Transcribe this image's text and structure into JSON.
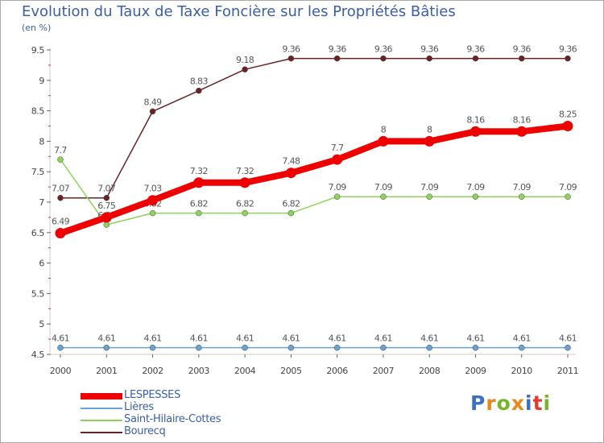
{
  "title": "Evolution du Taux de Taxe Foncière sur les Propriétés Bâties",
  "unit": "(en %)",
  "logo": {
    "letters": [
      "P",
      "r",
      "o",
      "x",
      "i",
      "t",
      "i"
    ],
    "colors": [
      "#3d6fc4",
      "#e8891c",
      "#7ab42d",
      "#e8891c",
      "#3d6fc4",
      "#e03c31",
      "#7ab42d"
    ]
  },
  "chart_data": {
    "type": "line",
    "title": "Evolution du Taux de Taxe Foncière sur les Propriétés Bâties",
    "ylabel": "(en %)",
    "xlabel": "",
    "ylim": [
      4.5,
      9.5
    ],
    "yticks": [
      "4.5",
      "5",
      "5.5",
      "6",
      "6.5",
      "7",
      "7.5",
      "8",
      "8.5",
      "9",
      "9.5"
    ],
    "categories": [
      "2000",
      "2001",
      "2002",
      "2003",
      "2004",
      "2005",
      "2006",
      "2007",
      "2008",
      "2009",
      "2010",
      "2011"
    ],
    "series": [
      {
        "name": "Bourecq",
        "color": "#6b2222",
        "values": [
          7.07,
          7.07,
          8.49,
          8.83,
          9.18,
          9.36,
          9.36,
          9.36,
          9.36,
          9.36,
          9.36,
          9.36
        ],
        "labels": [
          "7.07",
          "7.07",
          "8.49",
          "8.83",
          "9.18",
          "9.36",
          "9.36",
          "9.36",
          "9.36",
          "9.36",
          "9.36",
          "9.36"
        ]
      },
      {
        "name": "Saint-Hilaire-Cottes",
        "color": "#8fd35b",
        "values": [
          7.7,
          6.63,
          6.82,
          6.82,
          6.82,
          6.82,
          7.09,
          7.09,
          7.09,
          7.09,
          7.09,
          7.09
        ],
        "labels": [
          "7.7",
          "6.63",
          "6.82",
          "6.82",
          "6.82",
          "6.82",
          "7.09",
          "7.09",
          "7.09",
          "7.09",
          "7.09",
          "7.09"
        ]
      },
      {
        "name": "Lières",
        "color": "#6aa2d6",
        "values": [
          4.61,
          4.61,
          4.61,
          4.61,
          4.61,
          4.61,
          4.61,
          4.61,
          4.61,
          4.61,
          4.61,
          4.61
        ],
        "labels": [
          "4.61",
          "4.61",
          "4.61",
          "4.61",
          "4.61",
          "4.61",
          "4.61",
          "4.61",
          "4.61",
          "4.61",
          "4.61",
          "4.61"
        ]
      },
      {
        "name": "LESPESSES",
        "color": "#ee0000",
        "values": [
          6.49,
          6.75,
          7.03,
          7.32,
          7.32,
          7.48,
          7.7,
          8,
          8,
          8.16,
          8.16,
          8.25
        ],
        "labels": [
          "6.49",
          "6.75",
          "7.03",
          "7.32",
          "7.32",
          "7.48",
          "7.7",
          "8",
          "8",
          "8.16",
          "8.16",
          "8.25"
        ]
      }
    ],
    "legend": [
      "LESPESSES",
      "Lières",
      "Saint-Hilaire-Cottes",
      "Bourecq"
    ],
    "legend_position": "bottom-left",
    "grid": false
  }
}
